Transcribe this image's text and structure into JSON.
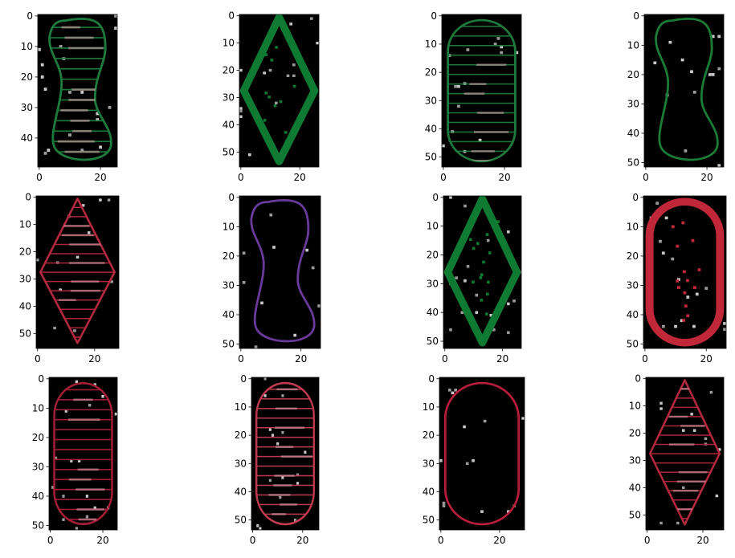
{
  "figure": {
    "panels": [
      {
        "shape": "bean",
        "fill": "striped",
        "color": "#1e7a3c",
        "width": 26,
        "height": 50,
        "xticks": [
          "0",
          "20"
        ],
        "yticks": [
          "0",
          "10",
          "20",
          "30",
          "40"
        ]
      },
      {
        "shape": "diamond",
        "fill": "solid",
        "color": "#0e7a32",
        "width": 27,
        "height": 56,
        "xticks": [
          "0",
          "20"
        ],
        "yticks": [
          "0",
          "10",
          "20",
          "30",
          "40",
          "50"
        ]
      },
      {
        "shape": "capsule",
        "fill": "striped",
        "color": "#1e7a3c",
        "width": 26,
        "height": 54,
        "xticks": [
          "0",
          "20"
        ],
        "yticks": [
          "0",
          "10",
          "20",
          "30",
          "40",
          "50"
        ]
      },
      {
        "shape": "bean",
        "fill": "outline",
        "color": "#1a7a36",
        "width": 26,
        "height": 52,
        "xticks": [
          "0",
          "20"
        ],
        "yticks": [
          "0",
          "10",
          "20",
          "30",
          "40",
          "50"
        ]
      },
      {
        "shape": "diamond",
        "fill": "striped",
        "color": "#b2283e",
        "width": 29,
        "height": 56,
        "xticks": [
          "0",
          "20"
        ],
        "yticks": [
          "0",
          "10",
          "20",
          "30",
          "40",
          "50"
        ]
      },
      {
        "shape": "bean",
        "fill": "outline",
        "color": "#6a3a9a",
        "width": 27,
        "height": 52,
        "xticks": [
          "0",
          "20"
        ],
        "yticks": [
          "0",
          "10",
          "20",
          "30",
          "40",
          "50"
        ]
      },
      {
        "shape": "diamond",
        "fill": "solid",
        "color": "#0e7a32",
        "width": 27,
        "height": 53,
        "xticks": [
          "0",
          "20"
        ],
        "yticks": [
          "0",
          "10",
          "20",
          "30",
          "40",
          "50"
        ]
      },
      {
        "shape": "capsule",
        "fill": "solid",
        "color": "#c0283a",
        "width": 27,
        "height": 52,
        "xticks": [
          "0",
          "20"
        ],
        "yticks": [
          "0",
          "10",
          "20",
          "30",
          "40",
          "50"
        ]
      },
      {
        "shape": "capsule",
        "fill": "striped",
        "color": "#a31e36",
        "width": 26,
        "height": 52,
        "xticks": [
          "0",
          "20"
        ],
        "yticks": [
          "0",
          "10",
          "20",
          "30",
          "40",
          "50"
        ]
      },
      {
        "shape": "capsule",
        "fill": "striped",
        "color": "#c23a50",
        "width": 27,
        "height": 54,
        "xticks": [
          "0",
          "20"
        ],
        "yticks": [
          "0",
          "10",
          "20",
          "30",
          "40",
          "50"
        ]
      },
      {
        "shape": "capsule",
        "fill": "outline",
        "color": "#b81e3c",
        "width": 29,
        "height": 54,
        "xticks": [
          "0",
          "20"
        ],
        "yticks": [
          "0",
          "10",
          "20",
          "30",
          "40",
          "50"
        ]
      },
      {
        "shape": "diamond",
        "fill": "striped",
        "color": "#b2283e",
        "width": 28,
        "height": 56,
        "xticks": [
          "0",
          "20"
        ],
        "yticks": [
          "0",
          "10",
          "20",
          "30",
          "40",
          "50"
        ]
      }
    ]
  }
}
